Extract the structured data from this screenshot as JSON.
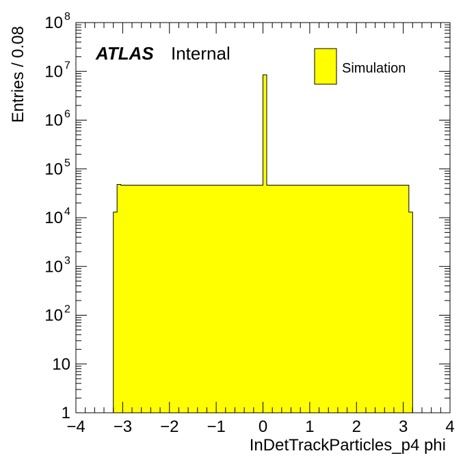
{
  "chart_data": {
    "type": "bar",
    "title": "",
    "xlabel": "InDetTrackParticles_p4 phi",
    "ylabel": "Entries / 0.08",
    "xlim": [
      -4,
      4
    ],
    "ylim": [
      1,
      100000000
    ],
    "y_scale": "log",
    "bin_width": 0.08,
    "x_ticks": [
      -4,
      -3,
      -2,
      -1,
      0,
      1,
      2,
      3,
      4
    ],
    "x_tick_labels": [
      "−4",
      "−3",
      "−2",
      "−1",
      "0",
      "1",
      "2",
      "3",
      "4"
    ],
    "y_tick_labels": [
      {
        "value": 1,
        "base": "1",
        "exp": ""
      },
      {
        "value": 10,
        "base": "10",
        "exp": ""
      },
      {
        "value": 100,
        "base": "10",
        "exp": "2"
      },
      {
        "value": 1000,
        "base": "10",
        "exp": "3"
      },
      {
        "value": 10000,
        "base": "10",
        "exp": "4"
      },
      {
        "value": 100000,
        "base": "10",
        "exp": "5"
      },
      {
        "value": 1000000,
        "base": "10",
        "exp": "6"
      },
      {
        "value": 10000000,
        "base": "10",
        "exp": "7"
      },
      {
        "value": 100000000,
        "base": "10",
        "exp": "8"
      }
    ],
    "grid": false,
    "legend_position": "top-right",
    "series": [
      {
        "name": "Simulation",
        "color": "#ffff00",
        "edges": [
          -3.2,
          -3.12,
          -3.04,
          3.12,
          3.2
        ],
        "values": [
          13000,
          48000,
          46500,
          13000
        ],
        "spike": {
          "x0": 0.0,
          "x1": 0.08,
          "value": 8500000
        }
      }
    ]
  },
  "atlas_label": {
    "bold": "ATLAS",
    "normal": "Internal"
  }
}
